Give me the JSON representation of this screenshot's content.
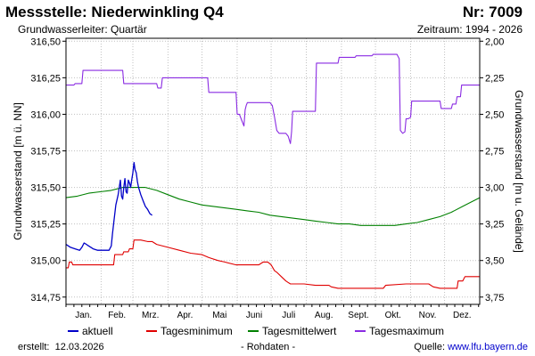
{
  "header": {
    "title": "Messstelle: Niederwinkling Q4",
    "nr": "Nr: 7009",
    "subtitle": "Grundwasserleiter: Quartär",
    "period": "Zeitraum: 1994 - 2026"
  },
  "footer": {
    "created_label": "erstellt:",
    "created_date": "12.03.2026",
    "note": "- Rohdaten -",
    "source_label": "Quelle:",
    "source_link": "www.lfu.bayern.de"
  },
  "colors": {
    "aktuell": "#0000c8",
    "tagesminimum": "#e00000",
    "tagesmittelwert": "#008000",
    "tagesmaximum": "#8a2be2"
  },
  "chart_data": {
    "type": "line",
    "title": "Messstelle: Niederwinkling Q4",
    "xlabel": "",
    "ylabel": "Grundwasserstand [m ü. NN]",
    "ylabel_right": "Grundwasserstand [m u. Gelände]",
    "x_unit": "day_of_year",
    "xlim": [
      0,
      365
    ],
    "ylim": [
      314.7,
      316.52
    ],
    "ylim_right": [
      3.8,
      1.98
    ],
    "yticks": [
      "314,75",
      "315,00",
      "315,25",
      "315,50",
      "315,75",
      "316,00",
      "316,25",
      "316,50"
    ],
    "yticks_right": [
      "3,75",
      "3,50",
      "3,25",
      "3,00",
      "2,75",
      "2,50",
      "2,25",
      "2,00"
    ],
    "month_labels": [
      "Jan.",
      "Feb.",
      "Mrz.",
      "Apr.",
      "Mai",
      "Juni",
      "Juli",
      "Aug.",
      "Sept.",
      "Okt.",
      "Nov.",
      "Dez."
    ],
    "grid": true,
    "legend_position": "bottom",
    "series": [
      {
        "name": "aktuell",
        "points": [
          [
            0,
            315.11
          ],
          [
            4,
            315.09
          ],
          [
            8,
            315.08
          ],
          [
            12,
            315.07
          ],
          [
            14,
            315.09
          ],
          [
            16,
            315.12
          ],
          [
            18,
            315.11
          ],
          [
            20,
            315.1
          ],
          [
            24,
            315.08
          ],
          [
            28,
            315.07
          ],
          [
            32,
            315.07
          ],
          [
            36,
            315.07
          ],
          [
            38,
            315.07
          ],
          [
            40,
            315.1
          ],
          [
            41,
            315.18
          ],
          [
            42,
            315.25
          ],
          [
            44,
            315.38
          ],
          [
            46,
            315.45
          ],
          [
            48,
            315.55
          ],
          [
            49,
            315.44
          ],
          [
            50,
            315.42
          ],
          [
            51,
            315.5
          ],
          [
            52,
            315.56
          ],
          [
            53,
            315.47
          ],
          [
            54,
            315.46
          ],
          [
            55,
            315.55
          ],
          [
            56,
            315.53
          ],
          [
            57,
            315.5
          ],
          [
            58,
            315.55
          ],
          [
            59,
            315.6
          ],
          [
            60,
            315.67
          ],
          [
            61,
            315.62
          ],
          [
            62,
            315.6
          ],
          [
            63,
            315.54
          ],
          [
            64,
            315.5
          ],
          [
            66,
            315.45
          ],
          [
            68,
            315.41
          ],
          [
            70,
            315.37
          ],
          [
            72,
            315.35
          ],
          [
            74,
            315.32
          ],
          [
            76,
            315.31
          ]
        ]
      },
      {
        "name": "Tagesminimum",
        "points": [
          [
            0,
            314.95
          ],
          [
            2,
            314.95
          ],
          [
            3,
            314.99
          ],
          [
            5,
            314.99
          ],
          [
            6,
            314.97
          ],
          [
            42,
            314.97
          ],
          [
            43,
            315.04
          ],
          [
            50,
            315.04
          ],
          [
            51,
            315.06
          ],
          [
            55,
            315.06
          ],
          [
            56,
            315.08
          ],
          [
            59,
            315.08
          ],
          [
            60,
            315.14
          ],
          [
            66,
            315.14
          ],
          [
            72,
            315.13
          ],
          [
            76,
            315.13
          ],
          [
            80,
            315.11
          ],
          [
            90,
            315.09
          ],
          [
            100,
            315.07
          ],
          [
            110,
            315.05
          ],
          [
            120,
            315.04
          ],
          [
            126,
            315.02
          ],
          [
            134,
            315.0
          ],
          [
            140,
            314.99
          ],
          [
            150,
            314.97
          ],
          [
            160,
            314.97
          ],
          [
            170,
            314.97
          ],
          [
            172,
            314.98
          ],
          [
            174,
            314.99
          ],
          [
            178,
            314.99
          ],
          [
            181,
            314.97
          ],
          [
            184,
            314.93
          ],
          [
            186,
            314.92
          ],
          [
            190,
            314.89
          ],
          [
            194,
            314.86
          ],
          [
            196,
            314.85
          ],
          [
            198,
            314.84
          ],
          [
            210,
            314.84
          ],
          [
            220,
            314.83
          ],
          [
            232,
            314.83
          ],
          [
            234,
            314.82
          ],
          [
            240,
            314.81
          ],
          [
            260,
            314.81
          ],
          [
            280,
            314.81
          ],
          [
            282,
            314.83
          ],
          [
            300,
            314.84
          ],
          [
            320,
            314.84
          ],
          [
            324,
            314.82
          ],
          [
            330,
            314.81
          ],
          [
            340,
            314.81
          ],
          [
            345,
            314.81
          ],
          [
            346,
            314.86
          ],
          [
            350,
            314.86
          ],
          [
            352,
            314.89
          ],
          [
            365,
            314.89
          ]
        ]
      },
      {
        "name": "Tagesmittelwert",
        "points": [
          [
            0,
            315.43
          ],
          [
            10,
            315.44
          ],
          [
            20,
            315.46
          ],
          [
            30,
            315.47
          ],
          [
            40,
            315.48
          ],
          [
            50,
            315.5
          ],
          [
            60,
            315.5
          ],
          [
            70,
            315.5
          ],
          [
            80,
            315.48
          ],
          [
            90,
            315.45
          ],
          [
            100,
            315.42
          ],
          [
            110,
            315.4
          ],
          [
            120,
            315.38
          ],
          [
            130,
            315.37
          ],
          [
            140,
            315.36
          ],
          [
            150,
            315.35
          ],
          [
            160,
            315.34
          ],
          [
            170,
            315.33
          ],
          [
            180,
            315.31
          ],
          [
            190,
            315.3
          ],
          [
            200,
            315.29
          ],
          [
            210,
            315.28
          ],
          [
            220,
            315.27
          ],
          [
            230,
            315.26
          ],
          [
            240,
            315.25
          ],
          [
            250,
            315.25
          ],
          [
            260,
            315.24
          ],
          [
            270,
            315.24
          ],
          [
            280,
            315.24
          ],
          [
            290,
            315.24
          ],
          [
            300,
            315.25
          ],
          [
            310,
            315.26
          ],
          [
            320,
            315.28
          ],
          [
            330,
            315.3
          ],
          [
            340,
            315.33
          ],
          [
            350,
            315.37
          ],
          [
            360,
            315.41
          ],
          [
            365,
            315.43
          ]
        ]
      },
      {
        "name": "Tagesmaximum",
        "points": [
          [
            0,
            316.2
          ],
          [
            7,
            316.2
          ],
          [
            8,
            316.21
          ],
          [
            14,
            316.21
          ],
          [
            15,
            316.3
          ],
          [
            50,
            316.3
          ],
          [
            51,
            316.21
          ],
          [
            80,
            316.21
          ],
          [
            81,
            316.18
          ],
          [
            84,
            316.18
          ],
          [
            85,
            316.25
          ],
          [
            125,
            316.25
          ],
          [
            126,
            316.15
          ],
          [
            150,
            316.15
          ],
          [
            151,
            316.0
          ],
          [
            153,
            316.0
          ],
          [
            155,
            315.96
          ],
          [
            157,
            315.92
          ],
          [
            158,
            316.03
          ],
          [
            159,
            316.06
          ],
          [
            160,
            316.08
          ],
          [
            170,
            316.08
          ],
          [
            180,
            316.08
          ],
          [
            182,
            316.06
          ],
          [
            184,
            315.98
          ],
          [
            186,
            315.89
          ],
          [
            188,
            315.87
          ],
          [
            194,
            315.87
          ],
          [
            196,
            315.85
          ],
          [
            198,
            315.8
          ],
          [
            199,
            315.88
          ],
          [
            200,
            316.02
          ],
          [
            220,
            316.02
          ],
          [
            221,
            316.35
          ],
          [
            240,
            316.35
          ],
          [
            241,
            316.39
          ],
          [
            255,
            316.39
          ],
          [
            256,
            316.4
          ],
          [
            270,
            316.4
          ],
          [
            271,
            316.41
          ],
          [
            292,
            316.41
          ],
          [
            294,
            316.38
          ],
          [
            295,
            315.89
          ],
          [
            297,
            315.87
          ],
          [
            299,
            315.88
          ],
          [
            300,
            315.97
          ],
          [
            302,
            315.97
          ],
          [
            304,
            315.98
          ],
          [
            305,
            316.09
          ],
          [
            330,
            316.09
          ],
          [
            331,
            316.04
          ],
          [
            340,
            316.04
          ],
          [
            341,
            316.07
          ],
          [
            344,
            316.07
          ],
          [
            345,
            316.12
          ],
          [
            348,
            316.12
          ],
          [
            349,
            316.2
          ],
          [
            365,
            316.2
          ]
        ]
      }
    ]
  }
}
